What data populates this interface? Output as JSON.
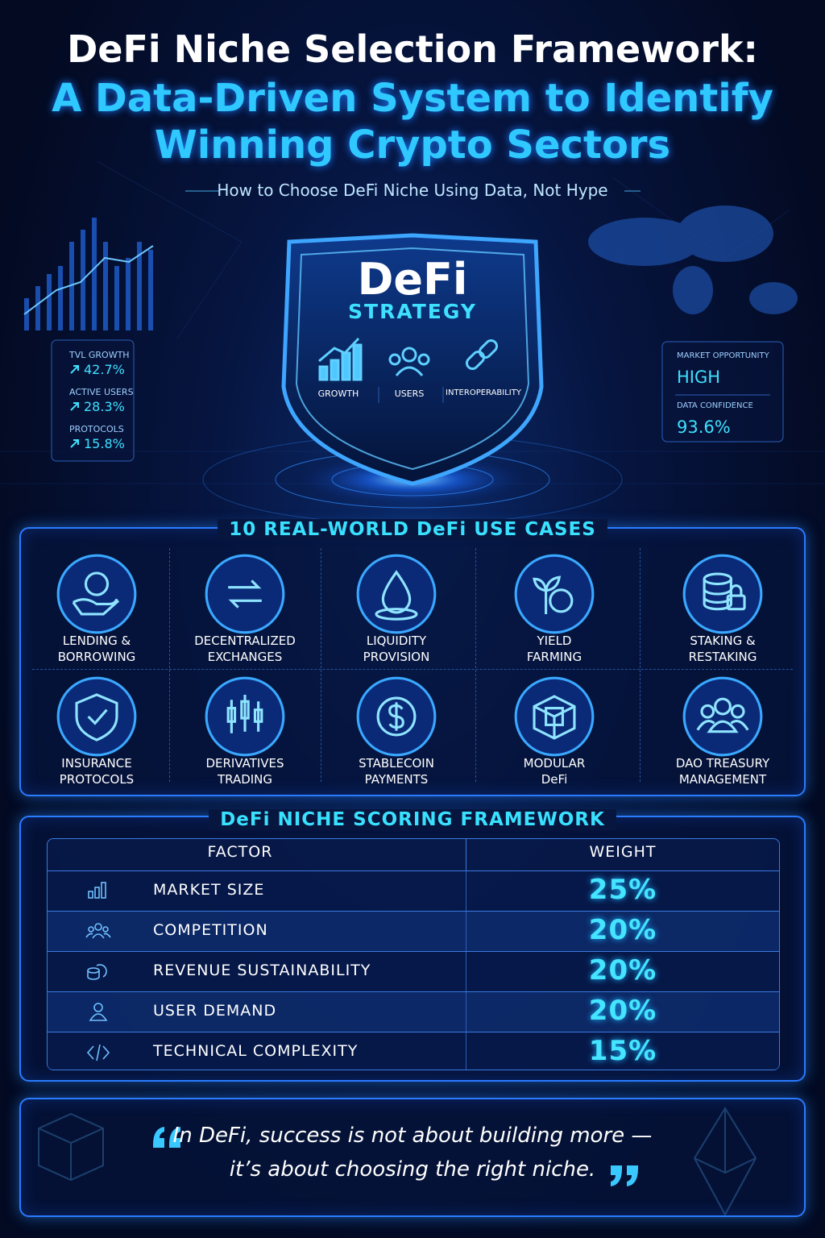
{
  "header": {
    "title_lines": [
      "DeFi Niche Selection Framework:",
      "A Data-Driven System to Identify",
      "Winning Crypto Sectors"
    ],
    "subtitle": "How to Choose DeFi Niche Using Data, Not Hype"
  },
  "hero": {
    "heading": "DeFi",
    "subheading": "STRATEGY",
    "pillars": [
      "GROWTH",
      "USERS",
      "INTEROPERABILITY"
    ]
  },
  "left_stats": [
    {
      "label": "TVL GROWTH",
      "value": "42.7%"
    },
    {
      "label": "ACTIVE USERS",
      "value": "28.3%"
    },
    {
      "label": "PROTOCOLS",
      "value": "15.8%"
    }
  ],
  "right_stats": [
    {
      "label": "MARKET OPPORTUNITY",
      "value": "HIGH"
    },
    {
      "label": "DATA CONFIDENCE",
      "value": "93.6%"
    }
  ],
  "use_cases": {
    "title": "10 REAL-WORLD DeFi USE CASES",
    "items": [
      [
        "LENDING &",
        "BORROWING"
      ],
      [
        "DECENTRALIZED",
        "EXCHANGES"
      ],
      [
        "LIQUIDITY",
        "PROVISION"
      ],
      [
        "YIELD",
        "FARMING"
      ],
      [
        "STAKING &",
        "RESTAKING"
      ],
      [
        "INSURANCE",
        "PROTOCOLS"
      ],
      [
        "DERIVATIVES",
        "TRADING"
      ],
      [
        "STABLECOIN",
        "PAYMENTS"
      ],
      [
        "MODULAR",
        "DeFi"
      ],
      [
        "DAO TREASURY",
        "MANAGEMENT"
      ]
    ]
  },
  "scoring": {
    "title": "DeFi NICHE SCORING FRAMEWORK",
    "columns": [
      "FACTOR",
      "WEIGHT"
    ],
    "rows": [
      [
        "MARKET SIZE",
        "25%"
      ],
      [
        "COMPETITION",
        "20%"
      ],
      [
        "REVENUE SUSTAINABILITY",
        "20%"
      ],
      [
        "USER DEMAND",
        "20%"
      ],
      [
        "TECHNICAL COMPLEXITY",
        "15%"
      ]
    ]
  },
  "quote": {
    "lines": [
      "In DeFi, success is not about building more —",
      "it’s about choosing the right niche."
    ]
  }
}
